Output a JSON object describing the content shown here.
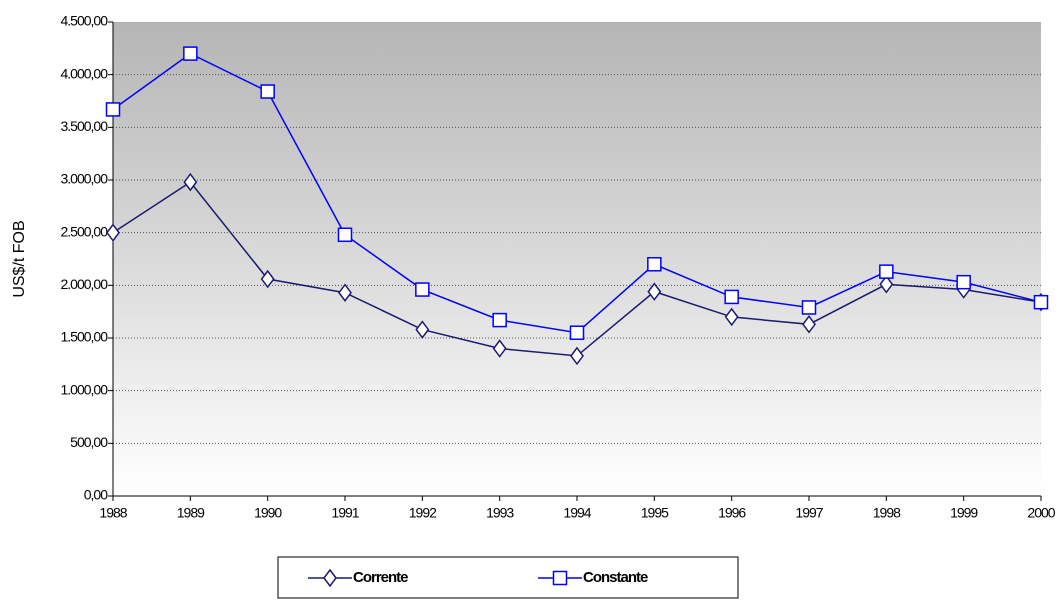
{
  "chart_data": {
    "type": "line",
    "y_label": "US$/t FOB",
    "categories": [
      "1988",
      "1989",
      "1990",
      "1991",
      "1992",
      "1993",
      "1994",
      "1995",
      "1996",
      "1997",
      "1998",
      "1999",
      "2000"
    ],
    "series": [
      {
        "name": "Corrente",
        "color": "#1a1a6e",
        "marker": "diamond",
        "values": [
          2500,
          2980,
          2060,
          1930,
          1580,
          1400,
          1330,
          1940,
          1700,
          1630,
          2010,
          1960,
          1840
        ]
      },
      {
        "name": "Constante",
        "color": "#0000ff",
        "marker": "square",
        "values": [
          3670,
          4200,
          3840,
          2480,
          1960,
          1670,
          1550,
          2200,
          1890,
          1790,
          2130,
          2030,
          1840
        ]
      }
    ],
    "ylim": [
      0,
      4500
    ],
    "yticks": [
      {
        "value": 0,
        "label": "0,00"
      },
      {
        "value": 500,
        "label": "500,00"
      },
      {
        "value": 1000,
        "label": "1.000,00"
      },
      {
        "value": 1500,
        "label": "1.500,00"
      },
      {
        "value": 2000,
        "label": "2.000,00"
      },
      {
        "value": 2500,
        "label": "2.500,00"
      },
      {
        "value": 3000,
        "label": "3.000,00"
      },
      {
        "value": 3500,
        "label": "3.500,00"
      },
      {
        "value": 4000,
        "label": "4.000,00"
      },
      {
        "value": 4500,
        "label": "4.500,00"
      }
    ],
    "grid": true,
    "legend": "bottom"
  }
}
